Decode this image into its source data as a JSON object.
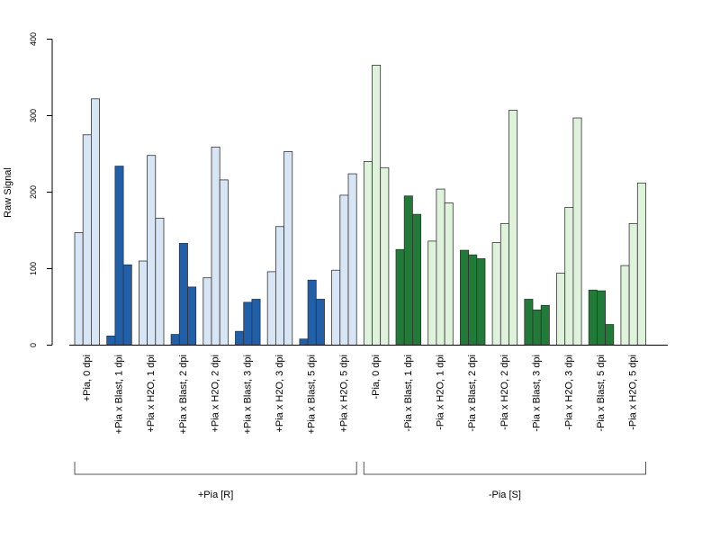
{
  "chart_data": {
    "type": "bar",
    "ylabel": "Raw Signal",
    "ylim": [
      0,
      400
    ],
    "yticks": [
      0,
      100,
      200,
      300,
      400
    ],
    "grid": false,
    "bar_border": "#333333",
    "categories": [
      {
        "label": "+Pia, 0 dpi",
        "color": "#d7e5f5",
        "values": [
          147,
          275,
          322
        ]
      },
      {
        "label": "+Pia x Blast, 1 dpi",
        "color": "#2060aa",
        "values": [
          12,
          234,
          105
        ]
      },
      {
        "label": "+Pia x H2O, 1 dpi",
        "color": "#d7e5f5",
        "values": [
          110,
          248,
          166
        ]
      },
      {
        "label": "+Pia x Blast, 2 dpi",
        "color": "#2060aa",
        "values": [
          14,
          133,
          76
        ]
      },
      {
        "label": "+Pia x H2O, 2 dpi",
        "color": "#d7e5f5",
        "values": [
          88,
          259,
          216
        ]
      },
      {
        "label": "+Pia x Blast, 3 dpi",
        "color": "#2060aa",
        "values": [
          18,
          56,
          60
        ]
      },
      {
        "label": "+Pia x H2O, 3 dpi",
        "color": "#d7e5f5",
        "values": [
          96,
          155,
          253
        ]
      },
      {
        "label": "+Pia x Blast, 5 dpi",
        "color": "#2060aa",
        "values": [
          8,
          85,
          60
        ]
      },
      {
        "label": "+Pia x H2O, 5 dpi",
        "color": "#d7e5f5",
        "values": [
          98,
          196,
          224
        ]
      },
      {
        "label": "-Pia, 0 dpi",
        "color": "#dff3dc",
        "values": [
          240,
          366,
          232
        ]
      },
      {
        "label": "-Pia x Blast, 1 dpi",
        "color": "#217a37",
        "values": [
          125,
          195,
          171
        ]
      },
      {
        "label": "-Pia x H2O, 1 dpi",
        "color": "#dff3dc",
        "values": [
          136,
          204,
          186
        ]
      },
      {
        "label": "-Pia x Blast, 2 dpi",
        "color": "#217a37",
        "values": [
          124,
          118,
          113
        ]
      },
      {
        "label": "-Pia x H2O, 2 dpi",
        "color": "#dff3dc",
        "values": [
          134,
          159,
          307
        ]
      },
      {
        "label": "-Pia x Blast, 3 dpi",
        "color": "#217a37",
        "values": [
          60,
          46,
          52
        ]
      },
      {
        "label": "-Pia x H2O, 3 dpi",
        "color": "#dff3dc",
        "values": [
          94,
          180,
          297
        ]
      },
      {
        "label": "-Pia x Blast, 5 dpi",
        "color": "#217a37",
        "values": [
          72,
          71,
          27
        ]
      },
      {
        "label": "-Pia x H2O, 5 dpi",
        "color": "#dff3dc",
        "values": [
          104,
          159,
          212
        ]
      }
    ],
    "groups": [
      {
        "label": "+Pia [R]",
        "first_category": 0,
        "last_category": 8
      },
      {
        "label": "-Pia [S]",
        "first_category": 9,
        "last_category": 17
      }
    ]
  }
}
